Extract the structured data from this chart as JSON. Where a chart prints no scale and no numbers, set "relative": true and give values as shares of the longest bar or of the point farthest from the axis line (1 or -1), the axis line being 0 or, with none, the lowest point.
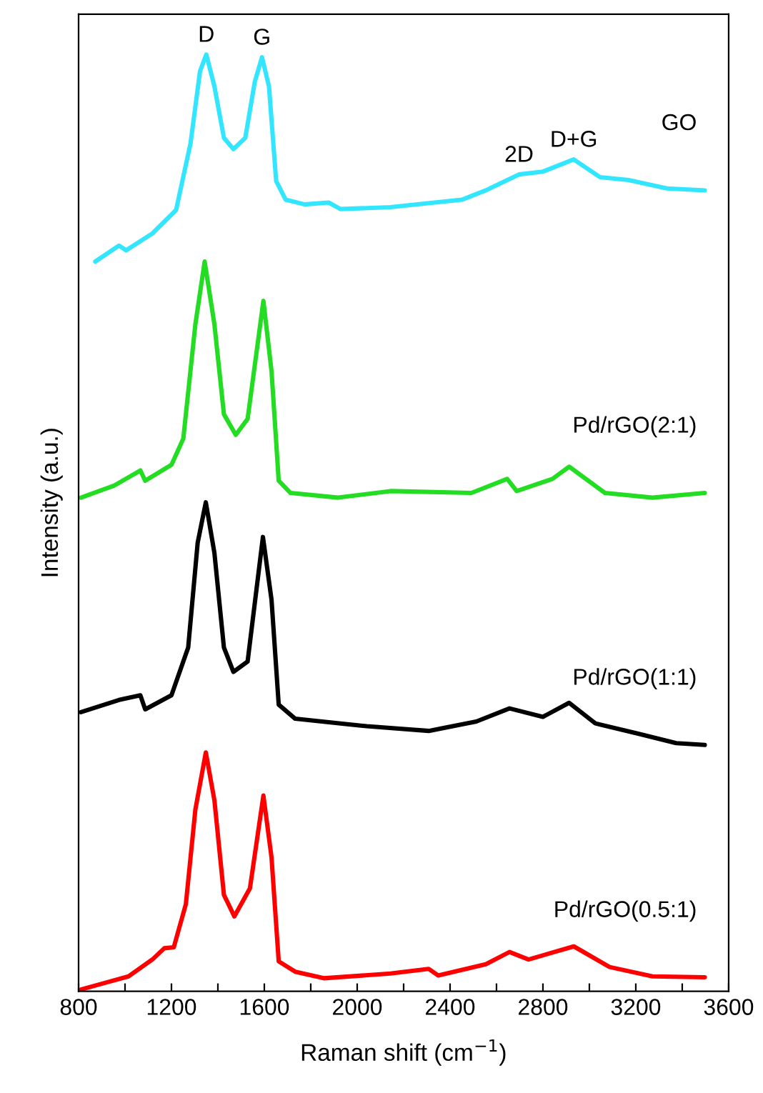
{
  "chart_data": {
    "type": "line",
    "relative": true,
    "xlabel": "Raman shift (cm$^{−1}$)",
    "ylabel": "Intensity (a.u.)",
    "xlim": [
      800,
      3600
    ],
    "xticks": [
      800,
      {
        "value": 1000,
        "label": null
      },
      1200,
      {
        "value": 1400,
        "label": null
      },
      1600,
      {
        "value": 1800,
        "label": null
      },
      2000,
      {
        "value": 2200,
        "label": null
      },
      2400,
      {
        "value": 2600,
        "label": null
      },
      2800,
      {
        "value": 3000,
        "label": null
      },
      3200,
      {
        "value": 3400,
        "label": null
      },
      3600
    ],
    "tick_labels": "x",
    "series": [
      {
        "name": "GO",
        "color": "#33e6ff",
        "x": [
          872,
          974,
          1005,
          1118,
          1220,
          1282,
          1323,
          1350,
          1385,
          1426,
          1467,
          1518,
          1559,
          1590,
          1620,
          1651,
          1692,
          1774,
          1877,
          1928,
          2143,
          2451,
          2554,
          2697,
          2800,
          2933,
          3046,
          3169,
          3334,
          3497
        ],
        "values": [
          0.779,
          0.796,
          0.791,
          0.809,
          0.834,
          0.905,
          0.982,
          1.0,
          0.966,
          0.911,
          0.899,
          0.911,
          0.971,
          0.997,
          0.966,
          0.865,
          0.845,
          0.84,
          0.842,
          0.835,
          0.837,
          0.845,
          0.855,
          0.872,
          0.875,
          0.888,
          0.869,
          0.866,
          0.857,
          0.855
        ]
      },
      {
        "name": "Pd/rGO(2:1)",
        "color": "#22dd22",
        "x": [
          810,
          954,
          1066,
          1087,
          1200,
          1251,
          1303,
          1343,
          1385,
          1426,
          1477,
          1528,
          1596,
          1631,
          1662,
          1713,
          1918,
          2143,
          2492,
          2646,
          2687,
          2841,
          2913,
          3067,
          3272,
          3497
        ],
        "values": [
          0.527,
          0.54,
          0.556,
          0.545,
          0.562,
          0.59,
          0.712,
          0.779,
          0.712,
          0.616,
          0.594,
          0.611,
          0.737,
          0.662,
          0.545,
          0.532,
          0.527,
          0.534,
          0.532,
          0.547,
          0.534,
          0.547,
          0.56,
          0.532,
          0.527,
          0.532
        ]
      },
      {
        "name": "Pd/rGO(1:1)",
        "color": "#000000",
        "x": [
          810,
          974,
          1066,
          1087,
          1200,
          1272,
          1313,
          1348,
          1385,
          1426,
          1467,
          1528,
          1594,
          1631,
          1662,
          1733,
          2041,
          2308,
          2513,
          2656,
          2800,
          2913,
          3026,
          3210,
          3374,
          3497
        ],
        "values": [
          0.298,
          0.311,
          0.316,
          0.301,
          0.316,
          0.367,
          0.479,
          0.522,
          0.468,
          0.367,
          0.341,
          0.352,
          0.485,
          0.418,
          0.306,
          0.291,
          0.283,
          0.278,
          0.288,
          0.302,
          0.293,
          0.308,
          0.286,
          0.275,
          0.265,
          0.263
        ]
      },
      {
        "name": "Pd/rGO(0.5:1)",
        "color": "#ff0000",
        "x": [
          810,
          913,
          1015,
          1118,
          1169,
          1210,
          1262,
          1303,
          1348,
          1385,
          1426,
          1471,
          1538,
          1596,
          1631,
          1662,
          1733,
          1856,
          2143,
          2308,
          2349,
          2554,
          2656,
          2738,
          2933,
          3087,
          3272,
          3497
        ],
        "values": [
          0.002,
          0.009,
          0.016,
          0.034,
          0.046,
          0.047,
          0.093,
          0.194,
          0.255,
          0.204,
          0.103,
          0.08,
          0.11,
          0.209,
          0.143,
          0.032,
          0.021,
          0.014,
          0.019,
          0.024,
          0.017,
          0.029,
          0.042,
          0.034,
          0.048,
          0.026,
          0.016,
          0.015
        ]
      }
    ],
    "annotations": [
      {
        "text": "D",
        "x": 1350,
        "y": 1.0
      },
      {
        "text": "G",
        "x": 1590,
        "y": 0.997
      },
      {
        "text": "2D",
        "x": 2697,
        "y": 0.872
      },
      {
        "text": "D+G",
        "x": 2933,
        "y": 0.888
      }
    ]
  }
}
